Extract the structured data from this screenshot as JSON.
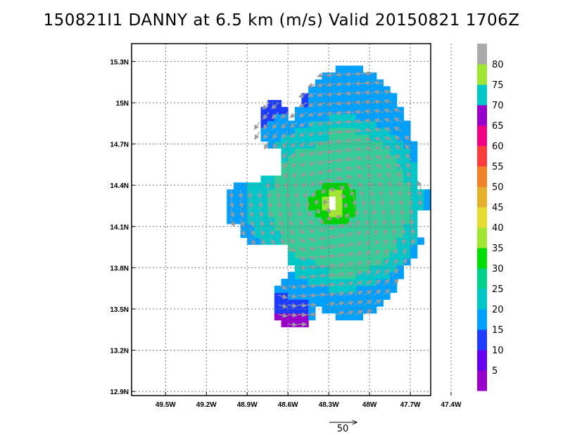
{
  "title": "150821I1 DANNY at 6.5 km (m/s) Valid 20150821  1706Z",
  "chart_data": {
    "type": "heatmap",
    "title": "150821I1 DANNY at 6.5 km (m/s) Valid 20150821  1706Z",
    "x_tick_labels": [
      "49.5W",
      "49.2W",
      "48.9W",
      "48.6W",
      "48.3W",
      "48W",
      "47.7W",
      "47.4W"
    ],
    "x_tick_values": [
      -49.5,
      -49.2,
      -48.9,
      -48.6,
      -48.3,
      -48.0,
      -47.7,
      -47.4
    ],
    "y_tick_labels": [
      "12.9N",
      "13.2N",
      "13.5N",
      "13.8N",
      "14.1N",
      "14.4N",
      "14.7N",
      "15N",
      "15.3N"
    ],
    "y_tick_values": [
      12.9,
      13.2,
      13.5,
      13.8,
      14.1,
      14.4,
      14.7,
      15.0,
      15.3
    ],
    "xlim": [
      -49.75,
      -47.55
    ],
    "ylim": [
      12.87,
      15.43
    ],
    "grid": true,
    "units": "m/s",
    "storm_center": {
      "lon": -48.27,
      "lat": 14.27
    },
    "colorbar": {
      "labels": [
        "5",
        "10",
        "15",
        "20",
        "25",
        "30",
        "35",
        "40",
        "45",
        "50",
        "55",
        "60",
        "65",
        "70",
        "75",
        "80"
      ],
      "colors": [
        "#9900cc",
        "#6600ee",
        "#1e3cff",
        "#00a0ff",
        "#00c8c8",
        "#00d28c",
        "#00dc00",
        "#a0e632",
        "#e6dc32",
        "#e6af2d",
        "#f08228",
        "#fa3c3c",
        "#f00082",
        "#9900cc",
        "#00c8c8",
        "#a0e632",
        "#aaaaaa"
      ]
    },
    "wind_colors": {
      "5": "#9900cc",
      "10": "#1e3cff",
      "15": "#00a0ff",
      "20": "#00c8c8",
      "25": "#33cc99",
      "30": "#00d200",
      "35": "#a0e632"
    },
    "reference_vector": {
      "label": "50",
      "value": 50
    }
  }
}
